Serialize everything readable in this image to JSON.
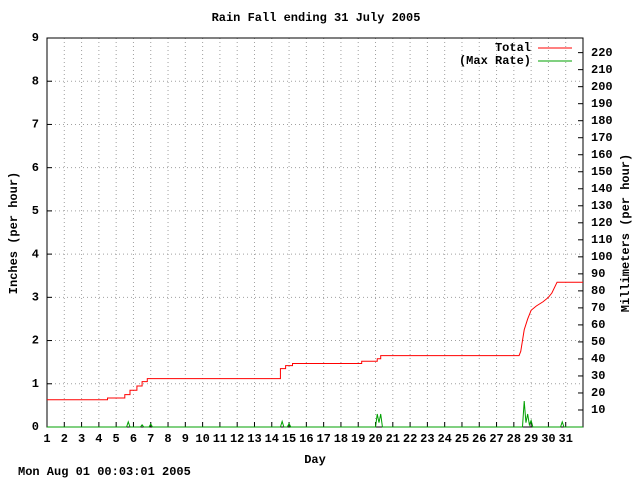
{
  "chart_data": {
    "type": "line",
    "title": "Rain Fall ending 31 July 2005",
    "x_label": "Day",
    "y_label": "Inches (per hour)",
    "y2_label": "Millimeters (per hour)",
    "footer": "Mon Aug 01 00:03:01 2005",
    "grid": true,
    "legend": "top-right",
    "xlim": [
      1,
      32
    ],
    "xticks": [
      1,
      2,
      3,
      4,
      5,
      6,
      7,
      8,
      9,
      10,
      11,
      12,
      13,
      14,
      15,
      16,
      17,
      18,
      19,
      20,
      21,
      22,
      23,
      24,
      25,
      26,
      27,
      28,
      29,
      30,
      31
    ],
    "ylim": [
      0,
      9
    ],
    "yticks": [
      0,
      1,
      2,
      3,
      4,
      5,
      6,
      7,
      8,
      9
    ],
    "y2lim": [
      0,
      228.6
    ],
    "y2ticks": [
      10,
      20,
      30,
      40,
      50,
      60,
      70,
      80,
      90,
      100,
      110,
      120,
      130,
      140,
      150,
      160,
      170,
      180,
      190,
      200,
      210,
      220
    ],
    "series": [
      {
        "name": "Total",
        "color": "#ff0000",
        "x": [
          1,
          4.5,
          4.5,
          5.5,
          5.5,
          5.8,
          5.8,
          6.2,
          6.2,
          6.5,
          6.5,
          6.8,
          6.8,
          14.5,
          14.5,
          14.8,
          14.8,
          15.2,
          15.2,
          19.2,
          19.2,
          20.1,
          20.1,
          20.3,
          20.3,
          28.3,
          28.4,
          28.5,
          28.6,
          28.8,
          29.0,
          29.3,
          29.7,
          30.0,
          30.2,
          30.5,
          32
        ],
        "values": [
          0.63,
          0.63,
          0.67,
          0.67,
          0.75,
          0.75,
          0.85,
          0.85,
          0.95,
          0.95,
          1.05,
          1.05,
          1.12,
          1.12,
          1.35,
          1.35,
          1.42,
          1.42,
          1.47,
          1.47,
          1.52,
          1.52,
          1.58,
          1.58,
          1.65,
          1.65,
          1.75,
          2.0,
          2.25,
          2.5,
          2.7,
          2.8,
          2.9,
          3.0,
          3.1,
          3.35,
          3.35
        ]
      },
      {
        "name": "(Max Rate)",
        "color": "#00a000",
        "x": [
          1,
          5.6,
          5.7,
          5.8,
          6.4,
          6.5,
          6.6,
          6.9,
          7.0,
          7.1,
          14.5,
          14.6,
          14.7,
          14.9,
          15.0,
          15.1,
          20.0,
          20.1,
          20.2,
          20.3,
          20.4,
          28.5,
          28.6,
          28.7,
          28.8,
          28.9,
          29.0,
          29.1,
          30.7,
          30.8,
          30.9,
          32
        ],
        "values": [
          0,
          0,
          0.12,
          0,
          0,
          0.05,
          0,
          0,
          0.07,
          0,
          0,
          0.13,
          0,
          0,
          0.08,
          0,
          0,
          0.3,
          0.1,
          0.3,
          0,
          0,
          0.6,
          0.1,
          0.3,
          0.05,
          0.15,
          0,
          0,
          0.12,
          0,
          0
        ]
      }
    ]
  }
}
